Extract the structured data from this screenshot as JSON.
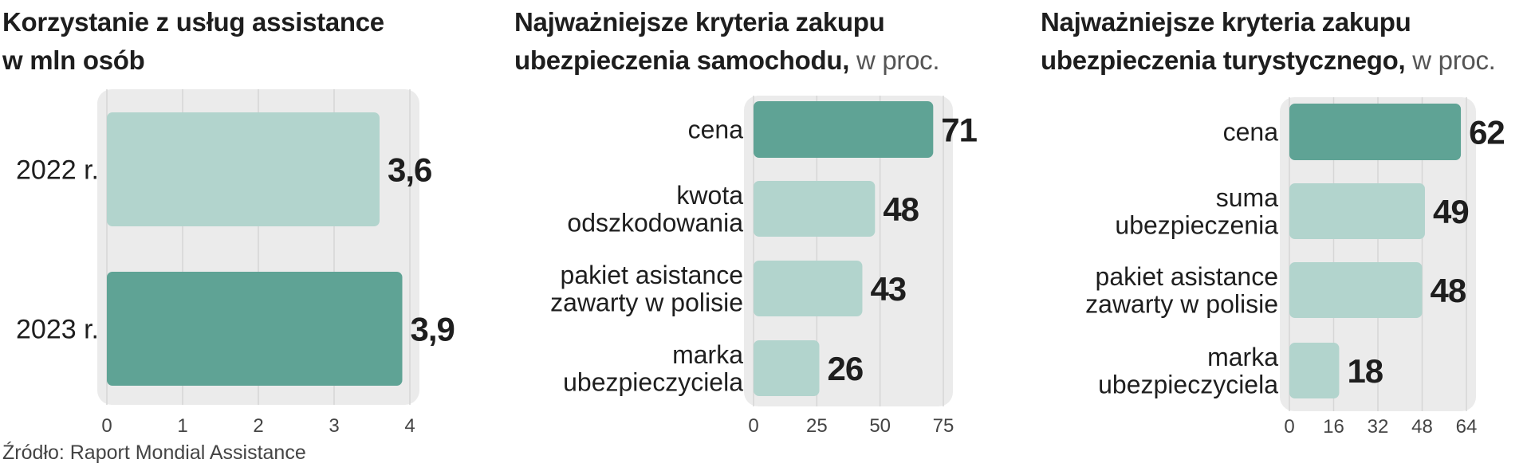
{
  "colors": {
    "highlight": "#5fa395",
    "bar": "#b2d4cd",
    "panel": "#ebebeb"
  },
  "chart_data": [
    {
      "type": "bar",
      "orientation": "horizontal",
      "title": "Korzystanie z usług assistance",
      "title_line2": "w mln osób",
      "unit": "",
      "categories": [
        "2022 r.",
        "2023 r."
      ],
      "values": [
        3.6,
        3.9
      ],
      "value_labels": [
        "3,6",
        "3,9"
      ],
      "highlight_index": 1,
      "xlim": [
        0,
        4
      ],
      "ticks": [
        0,
        1,
        2,
        3,
        4
      ],
      "grid": true
    },
    {
      "type": "bar",
      "orientation": "horizontal",
      "title": "Najważniejsze kryteria zakupu",
      "title_line2": "ubezpieczenia samochodu,",
      "unit": "w proc.",
      "categories": [
        [
          "cena"
        ],
        [
          "kwota",
          "odszkodowania"
        ],
        [
          "pakiet asistance",
          "zawarty w polisie"
        ],
        [
          "marka",
          "ubezpieczyciela"
        ]
      ],
      "values": [
        71,
        48,
        43,
        26
      ],
      "value_labels": [
        "71",
        "48",
        "43",
        "26"
      ],
      "highlight_index": 0,
      "xlim": [
        0,
        75
      ],
      "ticks": [
        0,
        25,
        50,
        75
      ],
      "grid": true
    },
    {
      "type": "bar",
      "orientation": "horizontal",
      "title": "Najważniejsze kryteria zakupu",
      "title_line2": "ubezpieczenia turystycznego,",
      "unit": "w proc.",
      "categories": [
        [
          "cena"
        ],
        [
          "suma",
          "ubezpieczenia"
        ],
        [
          "pakiet asistance",
          "zawarty w polisie"
        ],
        [
          "marka",
          "ubezpieczyciela"
        ]
      ],
      "values": [
        62,
        49,
        48,
        18
      ],
      "value_labels": [
        "62",
        "49",
        "48",
        "18"
      ],
      "highlight_index": 0,
      "xlim": [
        0,
        64
      ],
      "ticks": [
        0,
        16,
        32,
        48,
        64
      ],
      "grid": true
    }
  ],
  "source": "Źródło: Raport Mondial Assistance"
}
